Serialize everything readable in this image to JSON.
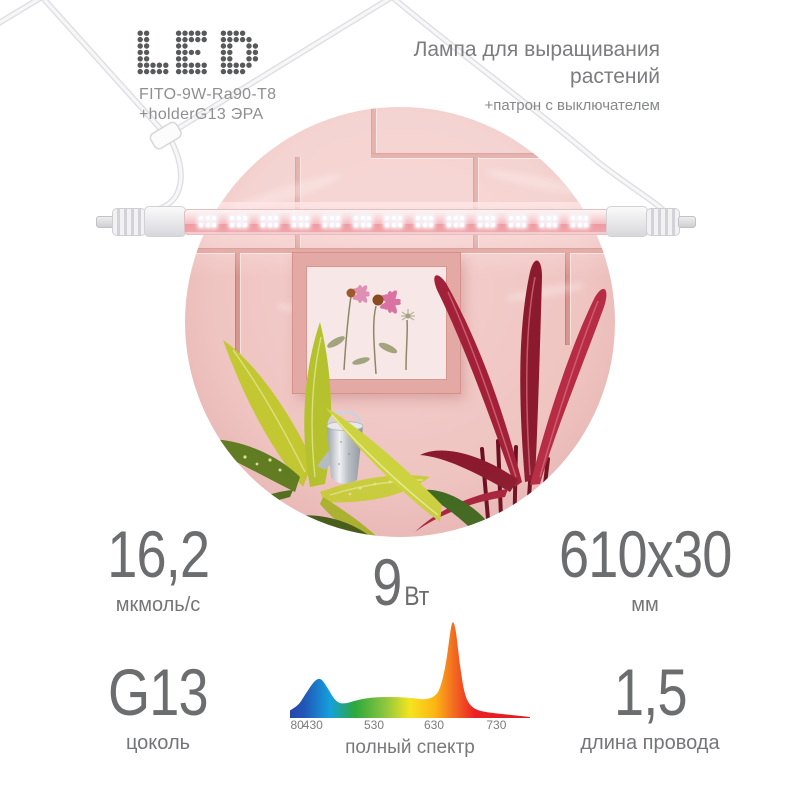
{
  "brand": {
    "logo_text": "LED",
    "model_line1": "FITO-9W-Ra90-T8",
    "model_line2": "+holderG13 ЭРА"
  },
  "header": {
    "title_line1": "Лампа для выращивания",
    "title_line2": "растений",
    "subtitle": "+патрон с выключателем"
  },
  "specs": {
    "ppf": {
      "value": "16,2",
      "unit": "мкмоль/с"
    },
    "power": {
      "value": "9",
      "unit": "Вт"
    },
    "size": {
      "value": "610x30",
      "unit": "мм"
    },
    "base": {
      "value": "G13",
      "unit": "цоколь"
    },
    "cable": {
      "value": "1,5",
      "unit": "длина провода"
    }
  },
  "chart_data": {
    "type": "area",
    "title": "полный спектр",
    "x_ticks": [
      "80",
      "430",
      "530",
      "630",
      "730"
    ],
    "x_tick_pos": [
      0.03,
      0.095,
      0.35,
      0.6,
      0.86
    ],
    "ylim": [
      0,
      100
    ],
    "points": [
      [
        380,
        2
      ],
      [
        405,
        8
      ],
      [
        420,
        24
      ],
      [
        435,
        38
      ],
      [
        445,
        40
      ],
      [
        455,
        30
      ],
      [
        470,
        14
      ],
      [
        485,
        13
      ],
      [
        500,
        16
      ],
      [
        520,
        19
      ],
      [
        545,
        20
      ],
      [
        570,
        20
      ],
      [
        595,
        19
      ],
      [
        615,
        17
      ],
      [
        630,
        20
      ],
      [
        640,
        28
      ],
      [
        650,
        55
      ],
      [
        658,
        96
      ],
      [
        662,
        100
      ],
      [
        666,
        90
      ],
      [
        672,
        55
      ],
      [
        680,
        22
      ],
      [
        690,
        10
      ],
      [
        705,
        5
      ],
      [
        730,
        3
      ]
    ],
    "gradient": [
      {
        "offset": 0.0,
        "color": "#2b3a9e"
      },
      {
        "offset": 0.1,
        "color": "#2158b8"
      },
      {
        "offset": 0.2,
        "color": "#15a0dc"
      },
      {
        "offset": 0.3,
        "color": "#2ea83c"
      },
      {
        "offset": 0.42,
        "color": "#8dc63f"
      },
      {
        "offset": 0.52,
        "color": "#f5e41f"
      },
      {
        "offset": 0.62,
        "color": "#fcb514"
      },
      {
        "offset": 0.7,
        "color": "#f26722"
      },
      {
        "offset": 0.78,
        "color": "#ec2024"
      },
      {
        "offset": 1.0,
        "color": "#e31b1f"
      }
    ]
  },
  "colors": {
    "text_number": "#6c6d6f",
    "text_label": "#747578",
    "logo_dots": "#58595b",
    "wall_pink": "#efc5c2",
    "mortar": "#d9968e",
    "wire": "#f7f7f9"
  }
}
